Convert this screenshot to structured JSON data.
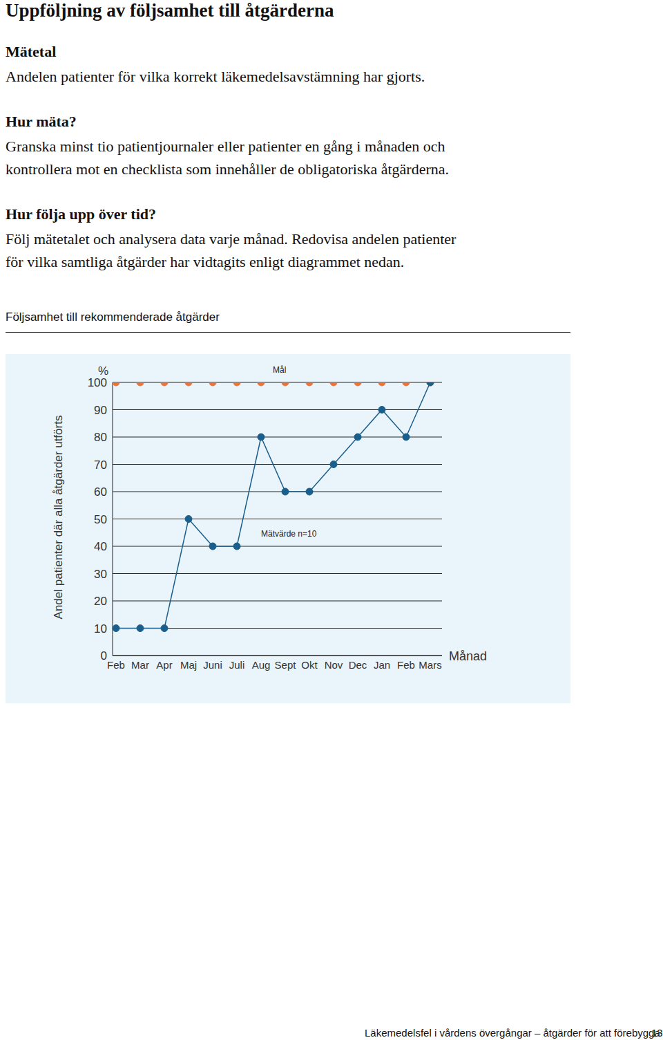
{
  "header": {
    "title": "Uppföljning av följsamhet till åtgärderna"
  },
  "sections": [
    {
      "heading": "Mätetal",
      "lines": [
        "Andelen patienter för vilka korrekt läkemedelsavstämning har gjorts."
      ]
    },
    {
      "heading": "Hur mäta?",
      "lines": [
        "Granska minst tio patientjournaler eller patienter en gång i månaden och",
        "kontrollera mot en checklista som innehåller de obligatoriska åtgärderna."
      ]
    },
    {
      "heading": "Hur följa upp över tid?",
      "lines": [
        "Följ mätetalet och analysera data varje månad. Redovisa andelen patienter",
        "för vilka samtliga åtgärder har vidtagits enligt diagrammet nedan."
      ]
    }
  ],
  "chart_data": {
    "type": "line",
    "title": "Följsamhet till rekommenderade åtgärder",
    "y_label": "Andel patienter där alla åtgärder utförts",
    "y_unit": "%",
    "x_label": "Månad",
    "categories": [
      "Feb",
      "Mar",
      "Apr",
      "Maj",
      "Juni",
      "Juli",
      "Aug",
      "Sept",
      "Okt",
      "Nov",
      "Dec",
      "Jan",
      "Feb",
      "Mars"
    ],
    "series": [
      {
        "name": "Mål",
        "color": "#e8763c",
        "marker": "circle",
        "line_style": "none",
        "values": [
          100,
          100,
          100,
          100,
          100,
          100,
          100,
          100,
          100,
          100,
          100,
          100,
          100,
          100
        ]
      },
      {
        "name": "Mätvärde n=10",
        "color": "#1a5f8c",
        "marker": "circle",
        "line_style": "solid",
        "values": [
          10,
          10,
          10,
          50,
          40,
          40,
          80,
          60,
          60,
          70,
          80,
          90,
          80,
          100
        ]
      }
    ],
    "ylim": [
      0,
      100
    ],
    "yticks": [
      0,
      10,
      20,
      30,
      40,
      50,
      60,
      70,
      80,
      90,
      100
    ],
    "grid": true
  },
  "footer": {
    "text": "Läkemedelsfel i vårdens övergångar – åtgärder för att förebygga",
    "page": "13"
  }
}
